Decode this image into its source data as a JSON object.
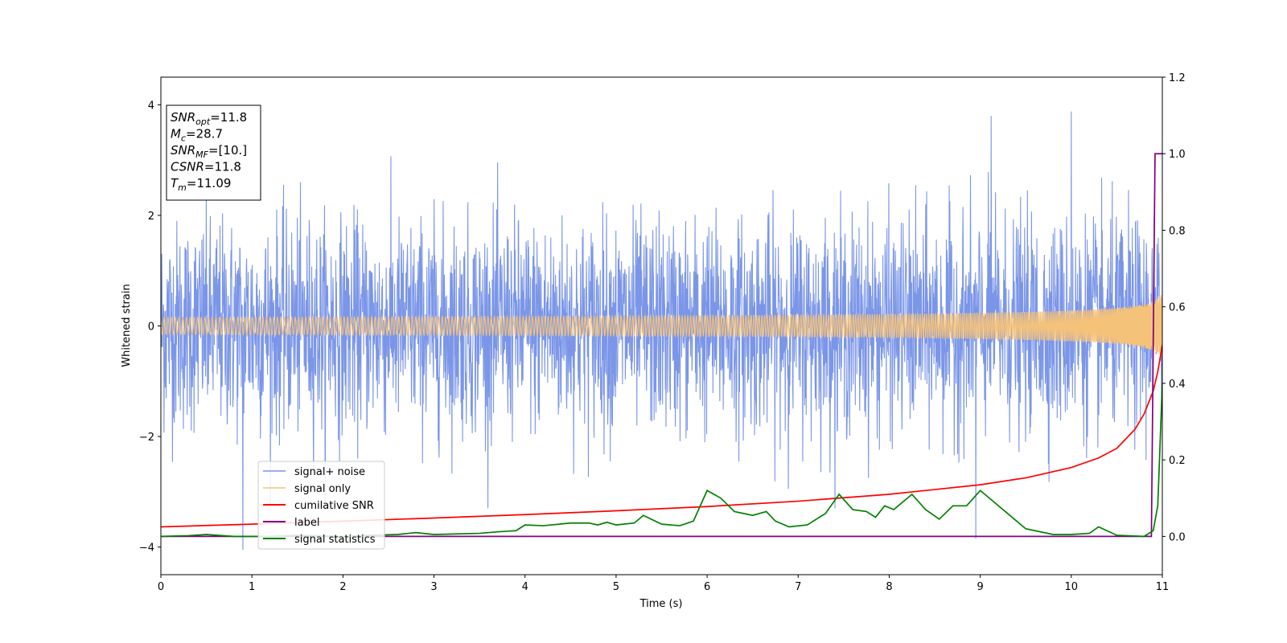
{
  "chart_data": {
    "type": "line",
    "xlabel": "Time (s)",
    "ylabel_left": "Whitened strain",
    "ylabel_right": "",
    "xlim": [
      0,
      11
    ],
    "ylim_left": [
      -4.5,
      4.5
    ],
    "ylim_right": [
      -0.1,
      1.2
    ],
    "x_ticks": [
      0,
      1,
      2,
      3,
      4,
      5,
      6,
      7,
      8,
      9,
      10,
      11
    ],
    "y_left_ticks": [
      -4,
      -2,
      0,
      2,
      4
    ],
    "y_right_ticks": [
      "0.0",
      "0.2",
      "0.4",
      "0.6",
      "0.8",
      "1.0",
      "1.2"
    ],
    "grid": false,
    "legend_position": "lower-left",
    "info_box": [
      {
        "sym": "SNR",
        "sub": "opt",
        "value": "=11.8"
      },
      {
        "sym": "M",
        "sub": "c",
        "value": "=28.7"
      },
      {
        "sym": "SNR",
        "sub": "MF",
        "value": "=[10.]"
      },
      {
        "sym": "CSNR",
        "sub": "",
        "value": "=11.8"
      },
      {
        "sym": "T",
        "sub": "m",
        "value": "=11.09"
      }
    ],
    "series": [
      {
        "name": "signal+ noise",
        "axis": "left",
        "color": "#7b96e8",
        "description_kind": "noise",
        "amplitude_std": 0.75,
        "notable_points": [
          [
            0.9,
            -4.05
          ],
          [
            8.95,
            -3.85
          ],
          [
            10.0,
            3.88
          ],
          [
            9.12,
            3.8
          ]
        ]
      },
      {
        "name": "signal only",
        "axis": "left",
        "color": "#f5c27a",
        "description_kind": "chirp",
        "end_time": 11.0,
        "end_amplitude": 0.6
      },
      {
        "name": "cumilative SNR",
        "axis": "right",
        "color": "#ff0000",
        "points": [
          [
            0,
            0.025
          ],
          [
            1,
            0.032
          ],
          [
            2,
            0.04
          ],
          [
            3,
            0.048
          ],
          [
            4,
            0.057
          ],
          [
            5,
            0.067
          ],
          [
            6,
            0.078
          ],
          [
            7,
            0.092
          ],
          [
            8,
            0.11
          ],
          [
            9,
            0.135
          ],
          [
            9.5,
            0.153
          ],
          [
            10,
            0.18
          ],
          [
            10.3,
            0.205
          ],
          [
            10.5,
            0.23
          ],
          [
            10.7,
            0.28
          ],
          [
            10.8,
            0.32
          ],
          [
            10.9,
            0.38
          ],
          [
            10.95,
            0.43
          ],
          [
            11,
            0.5
          ]
        ]
      },
      {
        "name": "label",
        "axis": "right",
        "color": "#800080",
        "points": [
          [
            0,
            0.0
          ],
          [
            10.88,
            0.0
          ],
          [
            10.92,
            1.0
          ],
          [
            11,
            1.0
          ]
        ]
      },
      {
        "name": "signal statistics",
        "axis": "right",
        "color": "#008000",
        "points": [
          [
            0,
            0.0
          ],
          [
            0.3,
            0.002
          ],
          [
            0.5,
            0.005
          ],
          [
            0.8,
            0.0
          ],
          [
            1.2,
            0.0
          ],
          [
            1.5,
            0.003
          ],
          [
            2.0,
            0.0
          ],
          [
            2.3,
            0.003
          ],
          [
            2.6,
            0.005
          ],
          [
            2.8,
            0.01
          ],
          [
            3.0,
            0.005
          ],
          [
            3.5,
            0.008
          ],
          [
            3.7,
            0.012
          ],
          [
            3.9,
            0.015
          ],
          [
            4.0,
            0.03
          ],
          [
            4.2,
            0.028
          ],
          [
            4.5,
            0.035
          ],
          [
            4.7,
            0.035
          ],
          [
            4.8,
            0.03
          ],
          [
            4.9,
            0.037
          ],
          [
            5.0,
            0.03
          ],
          [
            5.2,
            0.035
          ],
          [
            5.3,
            0.055
          ],
          [
            5.5,
            0.032
          ],
          [
            5.7,
            0.028
          ],
          [
            5.85,
            0.04
          ],
          [
            6.0,
            0.12
          ],
          [
            6.15,
            0.1
          ],
          [
            6.3,
            0.065
          ],
          [
            6.5,
            0.055
          ],
          [
            6.65,
            0.065
          ],
          [
            6.75,
            0.04
          ],
          [
            6.9,
            0.025
          ],
          [
            7.1,
            0.03
          ],
          [
            7.3,
            0.06
          ],
          [
            7.45,
            0.11
          ],
          [
            7.6,
            0.07
          ],
          [
            7.75,
            0.065
          ],
          [
            7.85,
            0.05
          ],
          [
            7.95,
            0.08
          ],
          [
            8.05,
            0.07
          ],
          [
            8.25,
            0.11
          ],
          [
            8.4,
            0.07
          ],
          [
            8.55,
            0.045
          ],
          [
            8.7,
            0.08
          ],
          [
            8.85,
            0.08
          ],
          [
            9.0,
            0.12
          ],
          [
            9.1,
            0.1
          ],
          [
            9.3,
            0.06
          ],
          [
            9.5,
            0.02
          ],
          [
            9.8,
            0.005
          ],
          [
            10.0,
            0.005
          ],
          [
            10.2,
            0.008
          ],
          [
            10.3,
            0.025
          ],
          [
            10.5,
            0.003
          ],
          [
            10.8,
            0.0
          ],
          [
            10.9,
            0.015
          ],
          [
            10.95,
            0.08
          ],
          [
            11.0,
            0.4
          ]
        ]
      }
    ]
  }
}
